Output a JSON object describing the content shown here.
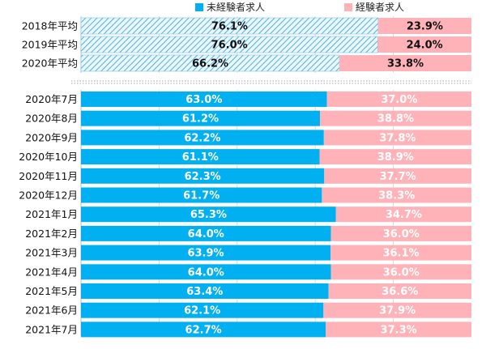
{
  "chart_data": {
    "type": "bar",
    "orientation": "horizontal",
    "stacked": "100%",
    "legend": {
      "placement": "top",
      "entries": [
        {
          "name": "未経験者求人",
          "color": "#00b0f0"
        },
        {
          "name": "経験者求人",
          "color": "#ffb3b8"
        }
      ]
    },
    "groups": [
      {
        "style": "hatched",
        "categories": [
          "2018年平均",
          "2019年平均",
          "2020年平均"
        ],
        "series": [
          {
            "name": "未経験者求人",
            "values": [
              76.1,
              76.0,
              66.2
            ],
            "labels": [
              "76.1%",
              "76.0%",
              "66.2%"
            ]
          },
          {
            "name": "経験者求人",
            "values": [
              23.9,
              24.0,
              33.8
            ],
            "labels": [
              "23.9%",
              "24.0%",
              "33.8%"
            ]
          }
        ]
      },
      {
        "style": "solid",
        "categories": [
          "2020年7月",
          "2020年8月",
          "2020年9月",
          "2020年10月",
          "2020年11月",
          "2020年12月",
          "2021年1月",
          "2021年2月",
          "2021年3月",
          "2021年4月",
          "2021年5月",
          "2021年6月",
          "2021年7月"
        ],
        "series": [
          {
            "name": "未経験者求人",
            "values": [
              63.0,
              61.2,
              62.2,
              61.1,
              62.3,
              61.7,
              65.3,
              64.0,
              63.9,
              64.0,
              63.4,
              62.1,
              62.7
            ],
            "labels": [
              "63.0%",
              "61.2%",
              "62.2%",
              "61.1%",
              "62.3%",
              "61.7%",
              "65.3%",
              "64.0%",
              "63.9%",
              "64.0%",
              "63.4%",
              "62.1%",
              "62.7%"
            ]
          },
          {
            "name": "経験者求人",
            "values": [
              37.0,
              38.8,
              37.8,
              38.9,
              37.7,
              38.3,
              34.7,
              36.0,
              36.1,
              36.0,
              36.6,
              37.9,
              37.3
            ],
            "labels": [
              "37.0%",
              "38.8%",
              "37.8%",
              "38.9%",
              "37.7%",
              "38.3%",
              "34.7%",
              "36.0%",
              "36.1%",
              "36.0%",
              "36.6%",
              "37.9%",
              "37.3%"
            ]
          }
        ]
      }
    ],
    "xlim": [
      0,
      100
    ],
    "grid": true,
    "colors": {
      "primary": "#00b0f0",
      "secondary": "#ffb3b8"
    }
  }
}
